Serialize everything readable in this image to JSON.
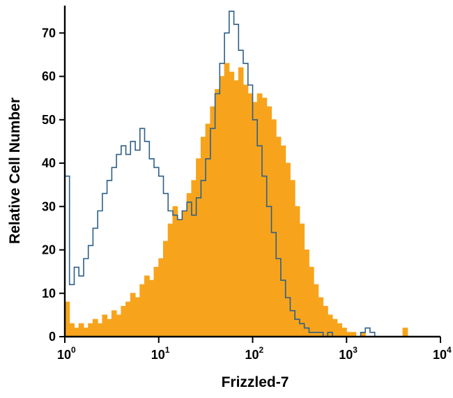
{
  "chart_data": {
    "type": "area",
    "subtype": "flow-cytometry-step-histogram",
    "title": "",
    "xlabel": "Frizzled-7",
    "ylabel": "Relative Cell Number",
    "x_scale": "log10",
    "xlim_log10": [
      0,
      4
    ],
    "x_tick_exponents": [
      0,
      1,
      2,
      3,
      4
    ],
    "x_tick_base": "10",
    "ylim": [
      0,
      76
    ],
    "y_ticks": [
      0,
      10,
      20,
      30,
      40,
      50,
      60,
      70
    ],
    "grid": false,
    "legend": "none",
    "bin_log10_start": 0,
    "bin_log10_step": 0.05,
    "series": [
      {
        "name": "orange-filled",
        "style": "filled",
        "color": "#F7A41C",
        "values": [
          8,
          3,
          2,
          3,
          2,
          3,
          4,
          3,
          5,
          4,
          6,
          5,
          7,
          8,
          10,
          9,
          12,
          14,
          13,
          16,
          18,
          22,
          26,
          30,
          27,
          29,
          33,
          36,
          41,
          46,
          49,
          53,
          57,
          60,
          63,
          61,
          59,
          62,
          58,
          56,
          54,
          56,
          55,
          53,
          50,
          46,
          44,
          40,
          36,
          30,
          26,
          20,
          16,
          12,
          9,
          7,
          5,
          4,
          3,
          2,
          1,
          1,
          0,
          1,
          0,
          0,
          0,
          0,
          0,
          0,
          0,
          0,
          2,
          0,
          0,
          0,
          0,
          0,
          0,
          0
        ]
      },
      {
        "name": "blue-open",
        "style": "outline",
        "color": "#2D5F87",
        "values": [
          37,
          12,
          16,
          14,
          18,
          21,
          25,
          29,
          33,
          36,
          39,
          42,
          44,
          42,
          45,
          43,
          48,
          45,
          41,
          39,
          37,
          33,
          29,
          28,
          27,
          29,
          31,
          28,
          32,
          36,
          41,
          48,
          56,
          63,
          70,
          75,
          72,
          66,
          63,
          58,
          50,
          44,
          37,
          30,
          24,
          18,
          13,
          9,
          6,
          4,
          3,
          2,
          1,
          1,
          1,
          0,
          1,
          0,
          0,
          0,
          0,
          0,
          0,
          1,
          2,
          1,
          0,
          0,
          0,
          0,
          0,
          0,
          0,
          0,
          0,
          0,
          0,
          0,
          0,
          0
        ]
      }
    ]
  },
  "colors": {
    "axis": "#000000",
    "background": "#ffffff"
  }
}
